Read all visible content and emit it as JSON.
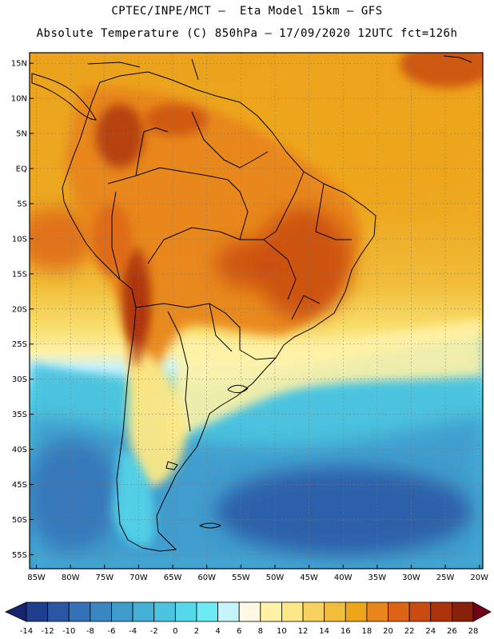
{
  "header": {
    "line1": "CPTEC/INPE/MCT –  Eta Model 15km – GFS",
    "line2": "Absolute Temperature (C) 850hPa – 17/09/2020 12UTC fct=126h"
  },
  "map": {
    "lat_labels": [
      "15N",
      "10N",
      "5N",
      "EQ",
      "5S",
      "10S",
      "15S",
      "20S",
      "25S",
      "30S",
      "35S",
      "40S",
      "45S",
      "50S",
      "55S"
    ],
    "lon_labels": [
      "85W",
      "80W",
      "75W",
      "70W",
      "65W",
      "60W",
      "55W",
      "50W",
      "45W",
      "40W",
      "35W",
      "30W",
      "25W",
      "20W"
    ],
    "lat_values": [
      15,
      10,
      5,
      0,
      -5,
      -10,
      -15,
      -20,
      -25,
      -30,
      -35,
      -40,
      -45,
      -50,
      -55
    ],
    "lon_values": [
      -85,
      -80,
      -75,
      -70,
      -65,
      -60,
      -55,
      -50,
      -45,
      -40,
      -35,
      -30,
      -25,
      -20
    ],
    "extent": {
      "lon_min": -86,
      "lon_max": -19.5,
      "lat_min": -57,
      "lat_max": 16.5
    }
  },
  "colorbar": {
    "labels": [
      "-14",
      "-12",
      "-10",
      "-8",
      "-6",
      "-4",
      "-2",
      "0",
      "2",
      "4",
      "6",
      "8",
      "10",
      "12",
      "14",
      "16",
      "18",
      "20",
      "22",
      "24",
      "26",
      "28"
    ],
    "colors": [
      "#1f3e8f",
      "#2a56a4",
      "#3471b6",
      "#3a86c2",
      "#3f9ccd",
      "#44b0d6",
      "#4cc3df",
      "#56d8eb",
      "#6eeaf5",
      "#c6f4fb",
      "#fff8e2",
      "#fff2a6",
      "#fde885",
      "#f8d25e",
      "#f3bd3c",
      "#eea51a",
      "#e8861c",
      "#dd6415",
      "#c94b10",
      "#aa330b",
      "#862009"
    ],
    "under_color": "#15256e",
    "over_color": "#730015"
  }
}
